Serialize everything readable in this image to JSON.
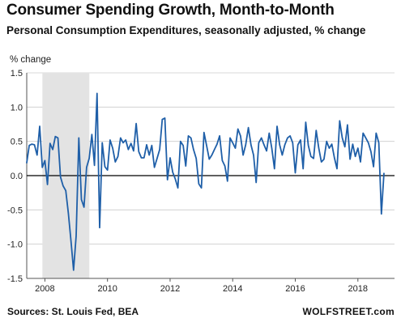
{
  "header": {
    "title": "Consumer Spending Growth, Month-to-Month",
    "subtitle": "Personal Consumption Expenditures, seasonally adjusted, % change"
  },
  "footer": {
    "source": "Sources: St. Louis Fed, BEA",
    "brand": "WOLFSTREET.com"
  },
  "chart_data": {
    "type": "line",
    "title": "Consumer Spending Growth, Month-to-Month",
    "subtitle": "Personal Consumption Expenditures, seasonally adjusted, % change",
    "ylabel": "% change",
    "xlabel": "",
    "xlim": [
      2007.42,
      2019.17
    ],
    "ylim": [
      -1.5,
      1.5
    ],
    "yticks": [
      1.5,
      1.0,
      0.5,
      0.0,
      -0.5,
      -1.0,
      -1.5
    ],
    "ytick_labels": [
      "1.5",
      "1.0",
      "0.5",
      "0.0",
      "-0.5",
      "-1.0",
      "-1.5"
    ],
    "xticks": [
      2008,
      2010,
      2012,
      2014,
      2016,
      2018
    ],
    "xtick_labels": [
      "2008",
      "2010",
      "2012",
      "2014",
      "2016",
      "2018"
    ],
    "grid": "horizontal",
    "line_color": "#1f5fa8",
    "zero_line_color": "#000000",
    "recession_band": {
      "start": 2007.92,
      "end": 2009.42,
      "color": "#e3e3e3"
    },
    "series": [
      {
        "start": "2007-06",
        "frequency": "monthly",
        "values": [
          0.18,
          0.44,
          0.46,
          0.45,
          0.3,
          0.72,
          0.12,
          0.22,
          -0.13,
          0.47,
          0.38,
          0.57,
          0.55,
          -0.02,
          -0.15,
          -0.22,
          -0.55,
          -0.95,
          -1.38,
          -0.88,
          0.55,
          -0.35,
          -0.46,
          0.12,
          0.25,
          0.6,
          0.15,
          1.2,
          -0.76,
          0.48,
          0.13,
          0.08,
          0.52,
          0.4,
          0.2,
          0.28,
          0.55,
          0.48,
          0.52,
          0.38,
          0.47,
          0.36,
          0.76,
          0.35,
          0.26,
          0.26,
          0.45,
          0.3,
          0.44,
          0.12,
          0.25,
          0.38,
          0.82,
          0.84,
          -0.06,
          0.26,
          0.05,
          -0.05,
          -0.18,
          0.5,
          0.44,
          0.14,
          0.58,
          0.55,
          0.38,
          0.25,
          -0.12,
          -0.18,
          0.63,
          0.44,
          0.24,
          0.3,
          0.38,
          0.46,
          0.58,
          0.22,
          0.14,
          -0.08,
          0.55,
          0.48,
          0.4,
          0.68,
          0.58,
          0.3,
          0.45,
          0.7,
          0.45,
          0.3,
          -0.1,
          0.48,
          0.55,
          0.45,
          0.36,
          0.62,
          0.4,
          0.1,
          0.72,
          0.45,
          0.3,
          0.45,
          0.55,
          0.58,
          0.48,
          0.04,
          0.45,
          0.52,
          0.1,
          0.78,
          0.44,
          0.28,
          0.25,
          0.66,
          0.4,
          0.2,
          0.24,
          0.5,
          0.4,
          0.46,
          0.26,
          0.1,
          0.8,
          0.55,
          0.42,
          0.74,
          0.24,
          0.46,
          0.28,
          0.4,
          0.2,
          0.62,
          0.55,
          0.48,
          0.35,
          0.13,
          0.62,
          0.48,
          -0.56,
          0.04
        ]
      }
    ]
  }
}
